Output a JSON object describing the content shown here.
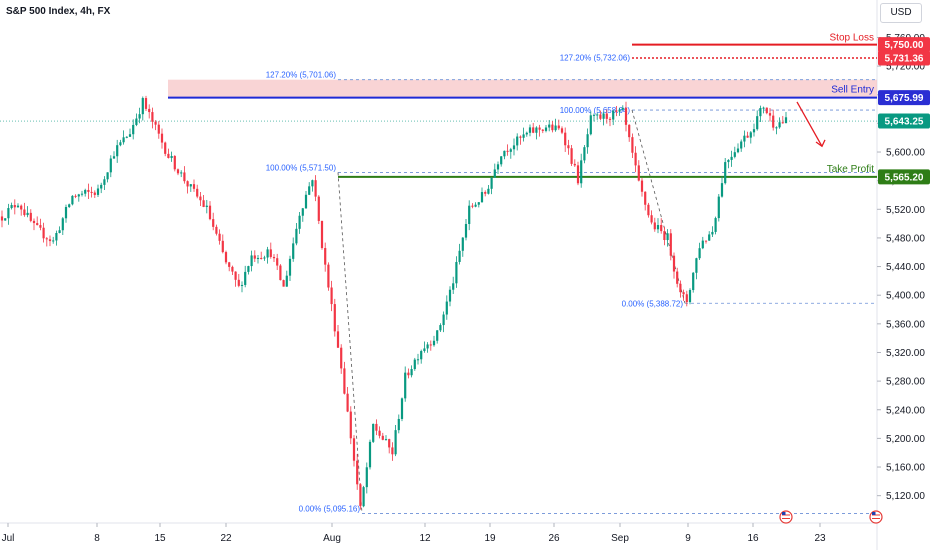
{
  "chart_data": {
    "type": "candlestick",
    "title": "S&P 500 Index, 4h, FX",
    "currency": "USD",
    "x_labels": [
      "Jul",
      "8",
      "15",
      "22",
      "Aug",
      "12",
      "19",
      "26",
      "Sep",
      "9",
      "16",
      "23"
    ],
    "y_ticks": [
      "5,760.00",
      "5,720.00",
      "5,680.00",
      "5,640.00",
      "5,600.00",
      "5,560.00",
      "5,520.00",
      "5,480.00",
      "5,440.00",
      "5,400.00",
      "5,360.00",
      "5,320.00",
      "5,280.00",
      "5,240.00",
      "5,200.00",
      "5,160.00",
      "5,120.00"
    ],
    "ylim": [
      5086,
      5790
    ],
    "price_path": [
      {
        "t": 0,
        "p": 5510
      },
      {
        "t": 5,
        "p": 5530
      },
      {
        "t": 10,
        "p": 5495
      },
      {
        "t": 16,
        "p": 5475
      },
      {
        "t": 22,
        "p": 5538
      },
      {
        "t": 30,
        "p": 5545
      },
      {
        "t": 35,
        "p": 5600
      },
      {
        "t": 40,
        "p": 5628
      },
      {
        "t": 44,
        "p": 5670
      },
      {
        "t": 47,
        "p": 5642
      },
      {
        "t": 52,
        "p": 5595
      },
      {
        "t": 58,
        "p": 5555
      },
      {
        "t": 64,
        "p": 5520
      },
      {
        "t": 70,
        "p": 5445
      },
      {
        "t": 74,
        "p": 5410
      },
      {
        "t": 78,
        "p": 5455
      },
      {
        "t": 84,
        "p": 5460
      },
      {
        "t": 88,
        "p": 5410
      },
      {
        "t": 93,
        "p": 5515
      },
      {
        "t": 97,
        "p": 5565
      },
      {
        "t": 101,
        "p": 5440
      },
      {
        "t": 106,
        "p": 5300
      },
      {
        "t": 110,
        "p": 5170
      },
      {
        "t": 112,
        "p": 5100
      },
      {
        "t": 116,
        "p": 5218
      },
      {
        "t": 122,
        "p": 5180
      },
      {
        "t": 126,
        "p": 5285
      },
      {
        "t": 131,
        "p": 5325
      },
      {
        "t": 136,
        "p": 5345
      },
      {
        "t": 141,
        "p": 5420
      },
      {
        "t": 146,
        "p": 5520
      },
      {
        "t": 151,
        "p": 5542
      },
      {
        "t": 156,
        "p": 5600
      },
      {
        "t": 160,
        "p": 5612
      },
      {
        "t": 165,
        "p": 5628
      },
      {
        "t": 170,
        "p": 5635
      },
      {
        "t": 175,
        "p": 5630
      },
      {
        "t": 180,
        "p": 5562
      },
      {
        "t": 184,
        "p": 5645
      },
      {
        "t": 189,
        "p": 5650
      },
      {
        "t": 194,
        "p": 5655
      },
      {
        "t": 199,
        "p": 5555
      },
      {
        "t": 203,
        "p": 5500
      },
      {
        "t": 208,
        "p": 5480
      },
      {
        "t": 212,
        "p": 5400
      },
      {
        "t": 214,
        "p": 5392
      },
      {
        "t": 218,
        "p": 5470
      },
      {
        "t": 222,
        "p": 5490
      },
      {
        "t": 226,
        "p": 5585
      },
      {
        "t": 230,
        "p": 5610
      },
      {
        "t": 234,
        "p": 5630
      },
      {
        "t": 238,
        "p": 5665
      },
      {
        "t": 241,
        "p": 5640
      },
      {
        "t": 245,
        "p": 5643
      }
    ],
    "levels": {
      "stop_loss": 5750.0,
      "fib_127_upper": 5731.36,
      "sell_entry": 5675.99,
      "current": 5643.25,
      "take_profit": 5565.2
    },
    "fib_left": [
      {
        "label": "127.20% (5,701.06)",
        "value": 5701.06
      },
      {
        "label": "100.00% (5,571.50)",
        "value": 5571.5
      },
      {
        "label": "0.00% (5,095.16)",
        "value": 5095.16
      }
    ],
    "fib_right": [
      {
        "label": "127.20% (5,732.06)",
        "value": 5732.06
      },
      {
        "label": "100.00% (5,658.64)",
        "value": 5658.64
      },
      {
        "label": "0.00% (5,388.72)",
        "value": 5388.72
      }
    ],
    "annotations": {
      "stop_loss_label": "Stop Loss",
      "sell_entry_label": "Sell Entry",
      "take_profit_label": "Take Profit"
    },
    "price_badges": [
      {
        "text": "5,750.00",
        "value": 5750.0,
        "color": "#f23645"
      },
      {
        "text": "5,731.36",
        "value": 5731.36,
        "color": "#f23645"
      },
      {
        "text": "5,675.99",
        "value": 5675.99,
        "color": "#2a2ed3"
      },
      {
        "text": "5,643.25",
        "value": 5643.25,
        "color": "#089981"
      },
      {
        "text": "5,565.20",
        "value": 5565.2,
        "color": "#2e7d16"
      }
    ],
    "colors": {
      "up": "#089981",
      "down": "#f23645",
      "stop": "#e51c23",
      "entry": "#1f2bd6",
      "take_profit": "#2e7d16",
      "zone": "#f7c6c7",
      "fib": "#6b8fd6"
    }
  }
}
